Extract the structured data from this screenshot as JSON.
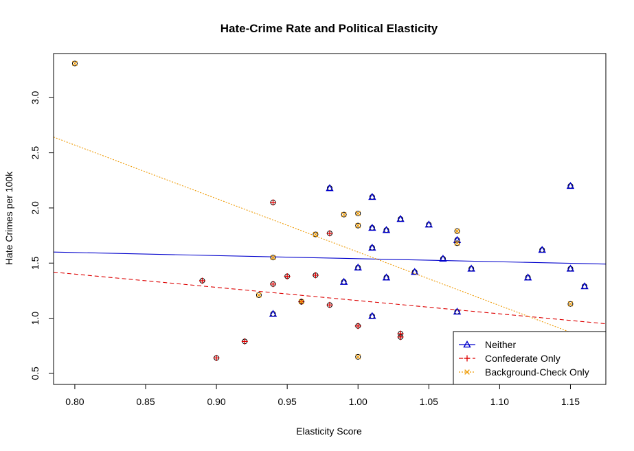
{
  "chart_data": {
    "type": "scatter",
    "title": "Hate-Crime Rate and Political Elasticity",
    "xlabel": "Elasticity Score",
    "ylabel": "Hate Crimes per 100k",
    "xlim": [
      0.785,
      1.175
    ],
    "ylim": [
      0.4,
      3.4
    ],
    "x_ticks": [
      0.8,
      0.85,
      0.9,
      0.95,
      1.0,
      1.05,
      1.1,
      1.15
    ],
    "x_tick_labels": [
      "0.80",
      "0.85",
      "0.90",
      "0.95",
      "1.00",
      "1.05",
      "1.10",
      "1.15"
    ],
    "y_ticks": [
      0.5,
      1.0,
      1.5,
      2.0,
      2.5,
      3.0
    ],
    "y_tick_labels": [
      "0.5",
      "1.0",
      "1.5",
      "2.0",
      "2.5",
      "3.0"
    ],
    "grid": false,
    "legend_position": "bottom-right",
    "series": [
      {
        "name": "Neither",
        "color": "#0000cc",
        "marker": "triangle",
        "line_style": "solid",
        "x": [
          0.94,
          0.98,
          0.99,
          1.0,
          1.01,
          1.01,
          1.01,
          1.01,
          1.02,
          1.02,
          1.03,
          1.04,
          1.05,
          1.06,
          1.07,
          1.07,
          1.08,
          1.12,
          1.13,
          1.15,
          1.15,
          1.16
        ],
        "y": [
          1.04,
          2.18,
          1.33,
          1.46,
          2.1,
          1.82,
          1.64,
          1.02,
          1.8,
          1.37,
          1.9,
          1.42,
          1.85,
          1.54,
          1.71,
          1.06,
          1.45,
          1.37,
          1.62,
          2.2,
          1.45,
          1.29
        ],
        "fit": {
          "intercept": 1.82,
          "slope": -0.28
        }
      },
      {
        "name": "Confederate Only",
        "color": "#dd0000",
        "marker": "plus",
        "line_style": "dashed",
        "x": [
          0.89,
          0.9,
          0.92,
          0.94,
          0.94,
          0.95,
          0.96,
          0.97,
          0.98,
          0.98,
          1.0,
          1.03,
          1.03
        ],
        "y": [
          1.34,
          0.64,
          0.79,
          2.05,
          1.31,
          1.38,
          1.15,
          1.39,
          1.77,
          1.12,
          0.93,
          0.86,
          0.83
        ],
        "fit": {
          "intercept": 2.36,
          "slope": -1.2
        }
      },
      {
        "name": "Background-Check Only",
        "color": "#ee9900",
        "marker": "x",
        "line_style": "dotted",
        "x": [
          0.8,
          0.93,
          0.94,
          0.96,
          0.97,
          0.99,
          1.0,
          1.0,
          1.0,
          1.07,
          1.07,
          1.15
        ],
        "y": [
          3.31,
          1.21,
          1.55,
          1.15,
          1.76,
          1.94,
          1.95,
          1.84,
          0.65,
          1.79,
          1.68,
          1.13
        ],
        "fit": {
          "intercept": 6.45,
          "slope": -4.85
        }
      }
    ]
  }
}
